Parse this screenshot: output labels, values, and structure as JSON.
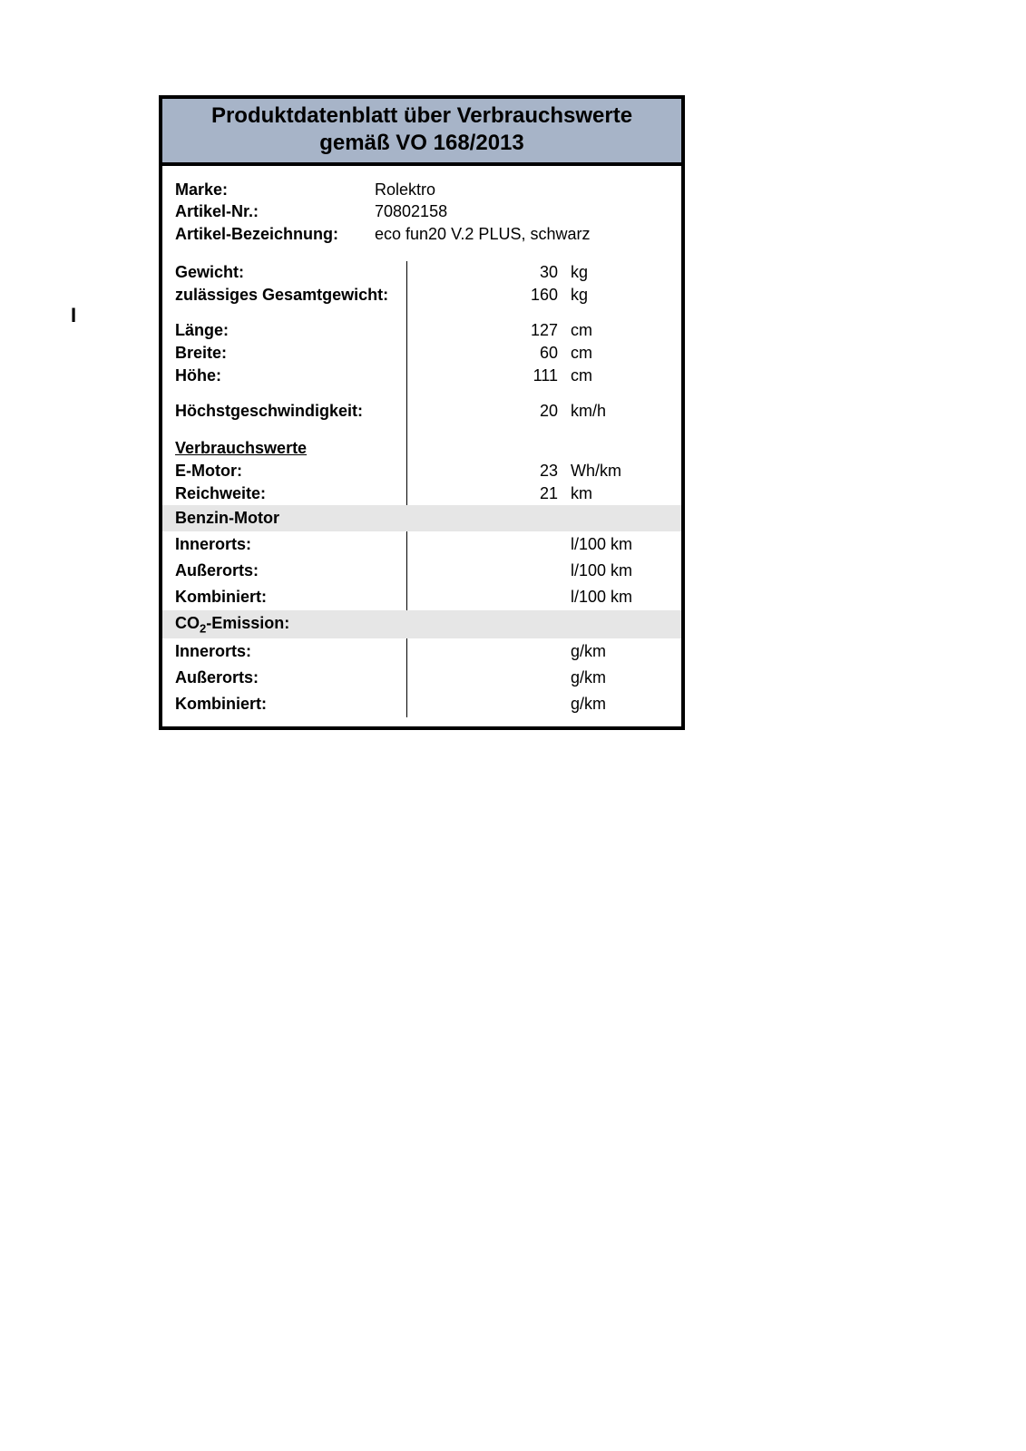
{
  "stray_mark": "I",
  "header": {
    "line1": "Produktdatenblatt über Verbrauchswerte",
    "line2": "gemäß VO 168/2013",
    "bg_color": "#a7b4c8"
  },
  "ident": {
    "brand_label": "Marke:",
    "brand_value": "Rolektro",
    "article_no_label": "Artikel-Nr.:",
    "article_no_value": "70802158",
    "article_name_label": "Artikel-Bezeichnung:",
    "article_name_value": "eco fun20 V.2 PLUS, schwarz"
  },
  "specs": {
    "weight_label": "Gewicht:",
    "weight_value": "30",
    "weight_unit": "kg",
    "gross_weight_label": "zulässiges Gesamtgewicht:",
    "gross_weight_value": "160",
    "gross_weight_unit": "kg",
    "length_label": "Länge:",
    "length_value": "127",
    "length_unit": "cm",
    "width_label": "Breite:",
    "width_value": "60",
    "width_unit": "cm",
    "height_label": "Höhe:",
    "height_value": "111",
    "height_unit": "cm",
    "topspeed_label": "Höchstgeschwindigkeit:",
    "topspeed_value": "20",
    "topspeed_unit": "km/h",
    "consumption_heading": "Verbrauchswerte",
    "emotor_label": "E-Motor:",
    "emotor_value": "23",
    "emotor_unit": "Wh/km",
    "range_label": "Reichweite:",
    "range_value": "21",
    "range_unit": "km"
  },
  "petrol": {
    "heading": "Benzin-Motor",
    "urban_label": "Innerorts:",
    "urban_value": "",
    "urban_unit": "l/100 km",
    "extra_label": "Außerorts:",
    "extra_value": "",
    "extra_unit": "l/100 km",
    "combined_label": "Kombiniert:",
    "combined_value": "",
    "combined_unit": "l/100 km"
  },
  "co2": {
    "heading_prefix": "CO",
    "heading_sub": "2",
    "heading_suffix": "-Emission:",
    "urban_label": "Innerorts:",
    "urban_value": "",
    "urban_unit": "g/km",
    "extra_label": "Außerorts:",
    "extra_value": "",
    "extra_unit": "g/km",
    "combined_label": "Kombiniert:",
    "combined_value": "",
    "combined_unit": "g/km"
  },
  "colors": {
    "border": "#000000",
    "band_bg": "#e6e6e6",
    "text": "#000000",
    "page_bg": "#ffffff"
  }
}
